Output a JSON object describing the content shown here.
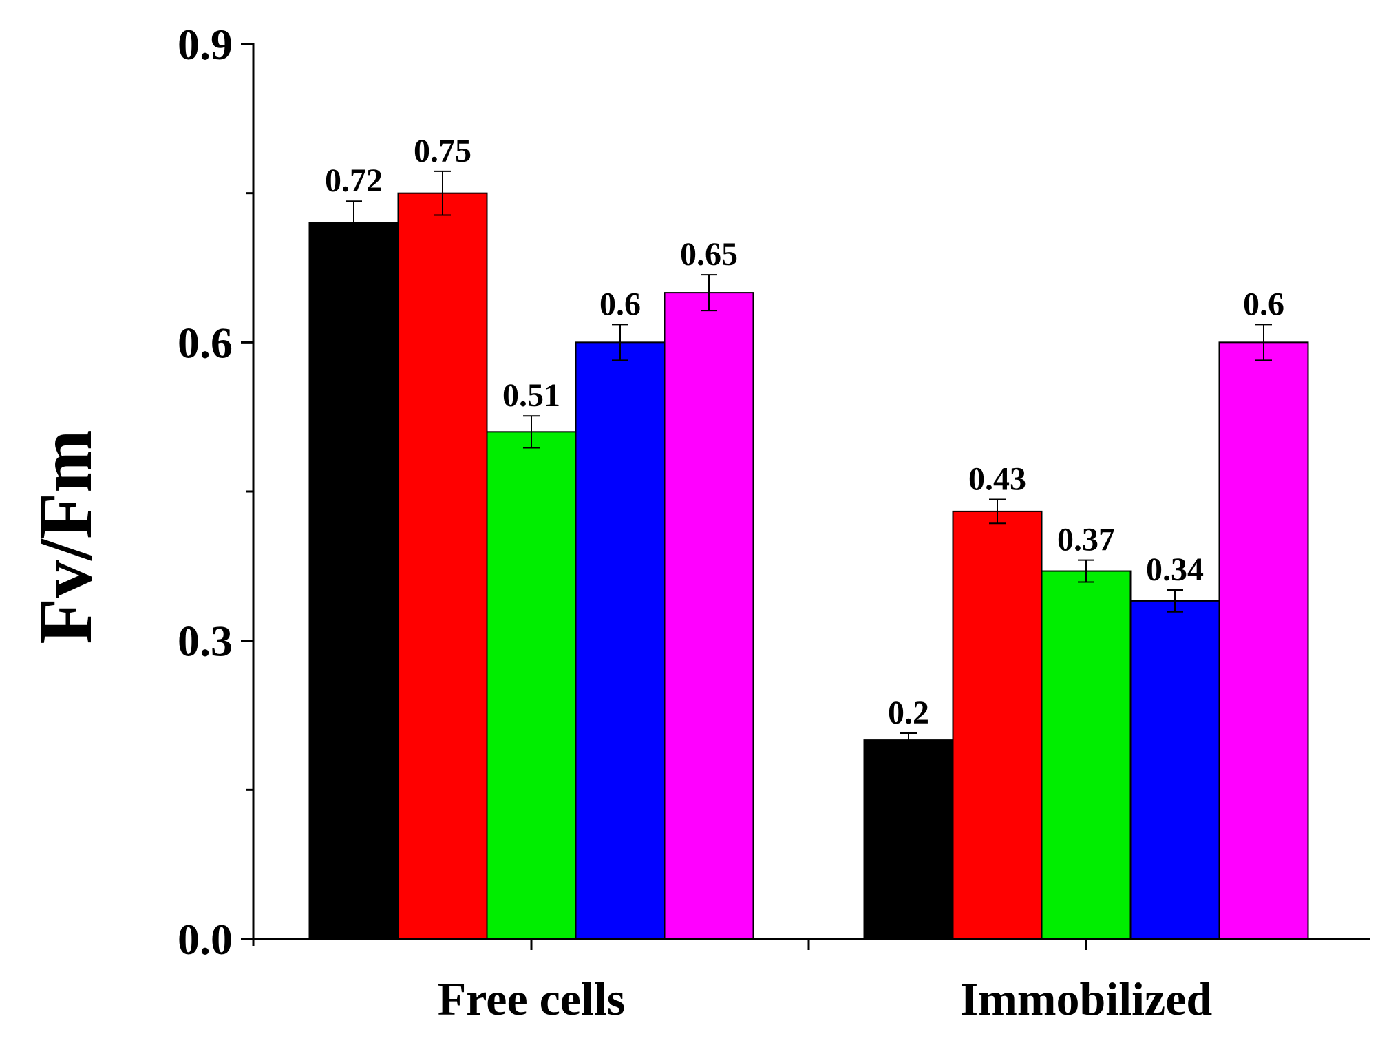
{
  "chart_data": {
    "type": "bar",
    "title": "",
    "xlabel": "",
    "ylabel": "Fv/Fm",
    "ylim": [
      0,
      0.9
    ],
    "yticks": [
      "0.0",
      "0.3",
      "0.6",
      "0.9"
    ],
    "minor_tick_step": 0.15,
    "grid": false,
    "legend": "none",
    "categories": [
      "Free cells",
      "Immobilized"
    ],
    "series": [
      {
        "name": "series-1",
        "color": "#000000",
        "values": [
          0.72,
          0.2
        ],
        "errors": [
          0.022,
          0.007
        ],
        "labels": [
          "0.72",
          "0.2"
        ]
      },
      {
        "name": "series-2",
        "color": "#ff0000",
        "values": [
          0.75,
          0.43
        ],
        "errors": [
          0.022,
          0.012
        ],
        "labels": [
          "0.75",
          "0.43"
        ]
      },
      {
        "name": "series-3",
        "color": "#00ee00",
        "values": [
          0.51,
          0.37
        ],
        "errors": [
          0.016,
          0.011
        ],
        "labels": [
          "0.51",
          "0.37"
        ]
      },
      {
        "name": "series-4",
        "color": "#0000ff",
        "values": [
          0.6,
          0.34
        ],
        "errors": [
          0.018,
          0.011
        ],
        "labels": [
          "0.6",
          "0.34"
        ]
      },
      {
        "name": "series-5",
        "color": "#ff00ff",
        "values": [
          0.65,
          0.6
        ],
        "errors": [
          0.018,
          0.018
        ],
        "labels": [
          "0.65",
          "0.6"
        ]
      }
    ]
  }
}
